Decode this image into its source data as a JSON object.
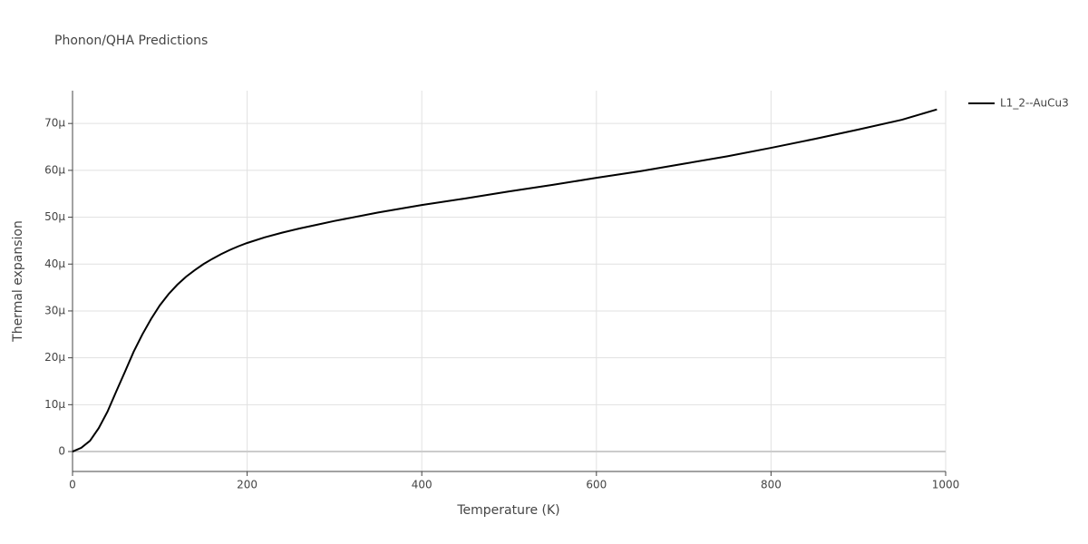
{
  "chart_data": {
    "type": "line",
    "title": "Phonon/QHA Predictions",
    "x_label": "Temperature (K)",
    "y_label": "Thermal expansion",
    "x": [
      0,
      10,
      20,
      30,
      40,
      50,
      60,
      70,
      80,
      90,
      100,
      110,
      120,
      130,
      140,
      150,
      160,
      170,
      180,
      190,
      200,
      220,
      240,
      260,
      280,
      300,
      350,
      400,
      450,
      500,
      550,
      600,
      650,
      700,
      750,
      800,
      850,
      900,
      950,
      990
    ],
    "series": [
      {
        "name": "L1_2--AuCu3",
        "color": "#000000",
        "values": [
          0,
          8e-07,
          2.3e-06,
          5e-06,
          8.5e-06,
          1.28e-05,
          1.7e-05,
          2.13e-05,
          2.5e-05,
          2.83e-05,
          3.12e-05,
          3.36e-05,
          3.56e-05,
          3.73e-05,
          3.87e-05,
          4e-05,
          4.11e-05,
          4.21e-05,
          4.3e-05,
          4.38e-05,
          4.45e-05,
          4.57e-05,
          4.67e-05,
          4.76e-05,
          4.84e-05,
          4.92e-05,
          5.1e-05,
          5.26e-05,
          5.4e-05,
          5.55e-05,
          5.69e-05,
          5.84e-05,
          5.98e-05,
          6.14e-05,
          6.3e-05,
          6.48e-05,
          6.67e-05,
          6.87e-05,
          7.08e-05,
          7.3e-05
        ]
      }
    ],
    "xlim": [
      0,
      1000
    ],
    "xticks": [
      0,
      200,
      400,
      600,
      800,
      1000
    ],
    "ylim": [
      -4.25e-06,
      7.7e-05
    ],
    "yticks": [
      0,
      {
        "value": 1e-05,
        "label": "10μ"
      },
      {
        "value": 2e-05,
        "label": "20μ"
      },
      {
        "value": 3e-05,
        "label": "30μ"
      },
      {
        "value": 4e-05,
        "label": "40μ"
      },
      {
        "value": 5e-05,
        "label": "50μ"
      },
      {
        "value": 6e-05,
        "label": "60μ"
      },
      {
        "value": 7e-05,
        "label": "70μ"
      }
    ],
    "grid": true,
    "legend": "top-right"
  }
}
